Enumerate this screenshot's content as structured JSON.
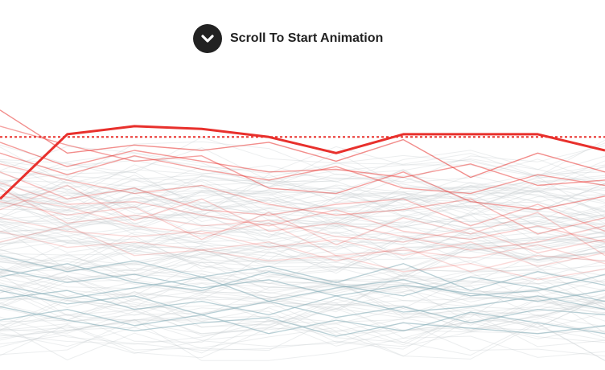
{
  "cta": {
    "label": "Scroll To Start Animation",
    "icon": "chevron-down-icon"
  },
  "colors": {
    "cta_bg": "#222222",
    "highlight": "#e8302c",
    "reference_line": "#e8302c",
    "background_line": "#c9cdd0",
    "teal_line": "#7fa9b4"
  },
  "chart_data": {
    "type": "line",
    "grid": false,
    "legend": "none",
    "x": [
      0,
      1,
      2,
      3,
      4,
      5,
      6,
      7,
      8,
      9
    ],
    "ylim": [
      0,
      100
    ],
    "reference_line": 85,
    "highlight": {
      "values": [
        62,
        86,
        89,
        88,
        85,
        79,
        86,
        86,
        86,
        80
      ]
    },
    "red_series": [
      [
        95,
        79,
        82,
        80,
        83,
        76,
        84,
        70,
        79,
        72
      ],
      [
        68,
        60,
        61,
        56,
        52,
        58,
        50,
        47,
        52,
        46
      ],
      [
        63,
        59,
        52,
        49,
        53,
        41,
        43,
        40,
        45,
        38
      ],
      [
        79,
        71,
        78,
        73,
        69,
        74,
        66,
        64,
        71,
        67
      ],
      [
        55,
        50,
        48,
        50,
        44,
        47,
        41,
        46,
        37,
        42
      ],
      [
        72,
        62,
        66,
        58,
        56,
        60,
        62,
        52,
        60,
        50
      ],
      [
        46,
        52,
        41,
        43,
        46,
        39,
        44,
        35,
        41,
        39
      ],
      [
        83,
        74,
        80,
        76,
        72,
        73,
        70,
        75,
        67,
        69
      ],
      [
        58,
        67,
        54,
        62,
        50,
        53,
        48,
        43,
        46,
        52
      ],
      [
        66,
        53,
        56,
        52,
        54,
        48,
        46,
        51,
        42,
        47
      ],
      [
        89,
        82,
        76,
        78,
        66,
        64,
        72,
        61,
        58,
        63
      ],
      [
        50,
        44,
        46,
        43,
        39,
        41,
        35,
        38,
        32,
        36
      ],
      [
        61,
        56,
        59,
        47,
        57,
        45,
        55,
        49,
        57,
        41
      ],
      [
        75,
        69,
        64,
        67,
        60,
        56,
        58,
        62,
        49,
        55
      ]
    ],
    "teal_series": [
      [
        28,
        23,
        26,
        19,
        24,
        18,
        22,
        16,
        21,
        19
      ],
      [
        36,
        31,
        34,
        29,
        32,
        26,
        30,
        27,
        24,
        28
      ],
      [
        22,
        17,
        13,
        16,
        18,
        11,
        16,
        14,
        12,
        15
      ],
      [
        33,
        38,
        31,
        28,
        35,
        30,
        26,
        33,
        29,
        24
      ],
      [
        17,
        21,
        15,
        19,
        12,
        17,
        13,
        20,
        16,
        12
      ],
      [
        41,
        35,
        39,
        33,
        37,
        31,
        38,
        28,
        35,
        30
      ],
      [
        25,
        28,
        21,
        24,
        19,
        26,
        20,
        22,
        26,
        21
      ],
      [
        30,
        25,
        29,
        33,
        24,
        29,
        32,
        26,
        28,
        34
      ]
    ]
  }
}
